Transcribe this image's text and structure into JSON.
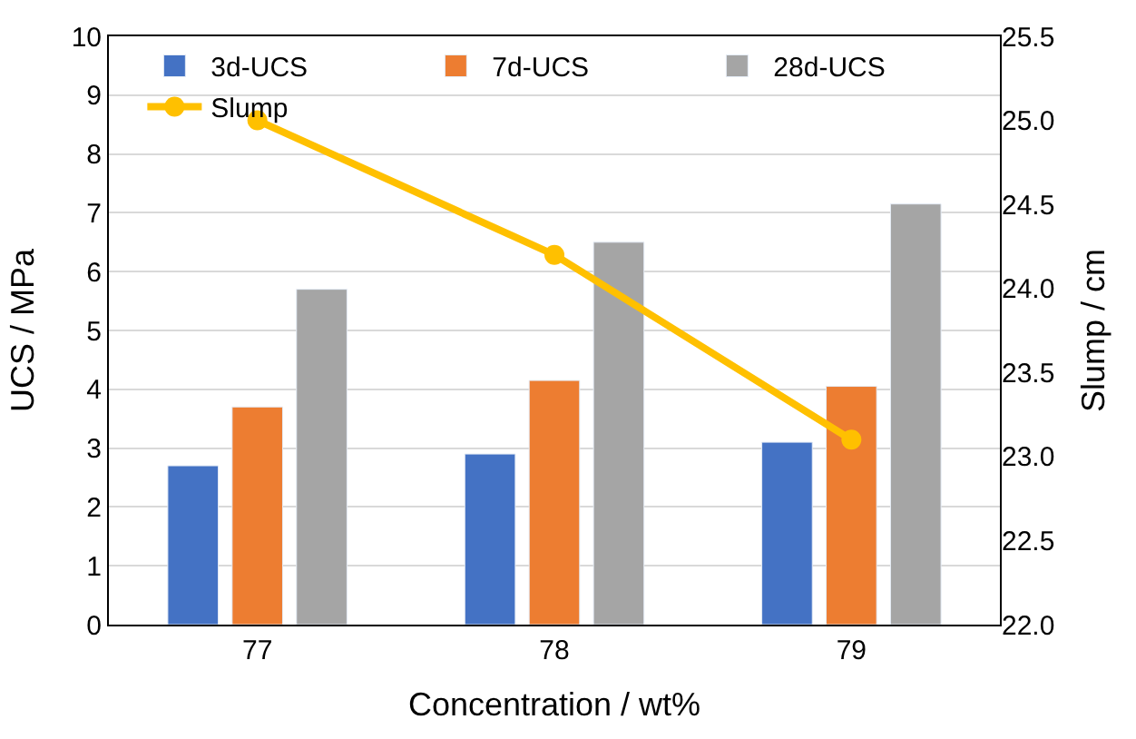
{
  "chart_data": {
    "type": "bar",
    "xlabel": "Concentration / wt%",
    "ylabel": "UCS / MPa",
    "y2label": "Slump / cm",
    "categories": [
      "77",
      "78",
      "79"
    ],
    "series": [
      {
        "name": "3d-UCS",
        "color": "#4472c4",
        "values": [
          2.7,
          2.9,
          3.1
        ]
      },
      {
        "name": "7d-UCS",
        "color": "#ed7d31",
        "values": [
          3.7,
          4.15,
          4.05
        ]
      },
      {
        "name": "28d-UCS",
        "color": "#a5a5a5",
        "values": [
          5.7,
          6.5,
          7.15
        ]
      },
      {
        "name": "Slump",
        "type": "line",
        "axis": "y2",
        "color": "#ffc000",
        "marker": "circle",
        "values": [
          25.0,
          24.2,
          23.1
        ]
      }
    ],
    "ylim": [
      0,
      10
    ],
    "yticks": [
      0,
      1,
      2,
      3,
      4,
      5,
      6,
      7,
      8,
      9,
      10
    ],
    "y2lim": [
      22,
      25.5
    ],
    "y2ticks": [
      {
        "value": 22,
        "label": "22.0"
      },
      {
        "value": 22.5,
        "label": "22.5"
      },
      {
        "value": 23,
        "label": "23.0"
      },
      {
        "value": 23.5,
        "label": "23.5"
      },
      {
        "value": 24,
        "label": "24.0"
      },
      {
        "value": 24.5,
        "label": "24.5"
      },
      {
        "value": 25,
        "label": "25.0"
      },
      {
        "value": 25.5,
        "label": "25.5"
      }
    ],
    "grid": "y",
    "legend": "top right"
  }
}
